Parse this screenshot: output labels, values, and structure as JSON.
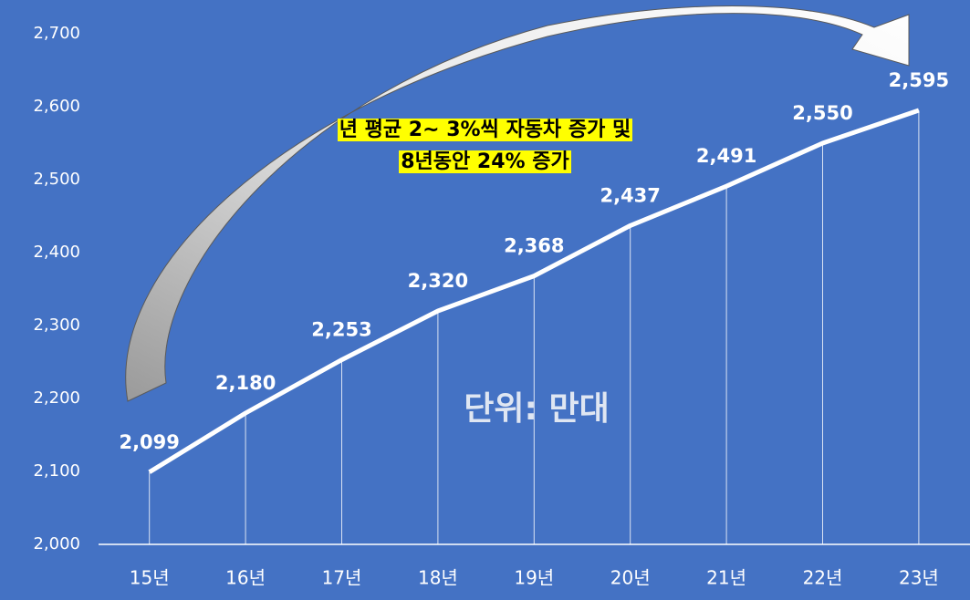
{
  "chart_data": {
    "type": "line",
    "categories": [
      "15년",
      "16년",
      "17년",
      "18년",
      "19년",
      "20년",
      "21년",
      "22년",
      "23년"
    ],
    "values": [
      2099,
      2180,
      2253,
      2320,
      2368,
      2437,
      2491,
      2550,
      2595
    ],
    "value_labels": [
      "2,099",
      "2,180",
      "2,253",
      "2,320",
      "2,368",
      "2,437",
      "2,491",
      "2,550",
      "2,595"
    ],
    "color": "#ffffff",
    "ylim": [
      2000,
      2700
    ],
    "yticks": [
      {
        "value": 2000,
        "label": "2,000"
      },
      {
        "value": 2100,
        "label": "2,100"
      },
      {
        "value": 2200,
        "label": "2,200"
      },
      {
        "value": 2300,
        "label": "2,300"
      },
      {
        "value": 2400,
        "label": "2,400"
      },
      {
        "value": 2500,
        "label": "2,500"
      },
      {
        "value": 2600,
        "label": "2,600"
      },
      {
        "value": 2700,
        "label": "2,700"
      }
    ],
    "drop_lines": true,
    "annotations": [
      "년 평균 2~ 3%씩 자동차 증가 및",
      "8년동안 24% 증가",
      "단위: 만대"
    ]
  }
}
